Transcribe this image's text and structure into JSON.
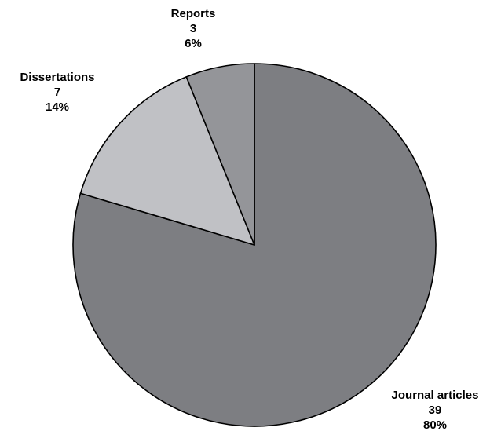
{
  "chart_data": {
    "type": "pie",
    "slices": [
      {
        "label": "Journal articles",
        "value": 39,
        "percent": "80%",
        "color": "#7d7e82"
      },
      {
        "label": "Dissertations",
        "value": 7,
        "percent": "14%",
        "color": "#c0c1c5"
      },
      {
        "label": "Reports",
        "value": 3,
        "percent": "6%",
        "color": "#949599"
      }
    ],
    "start_angle_deg": 0,
    "direction": "clockwise",
    "legend": "none",
    "border_color": "#000000"
  }
}
